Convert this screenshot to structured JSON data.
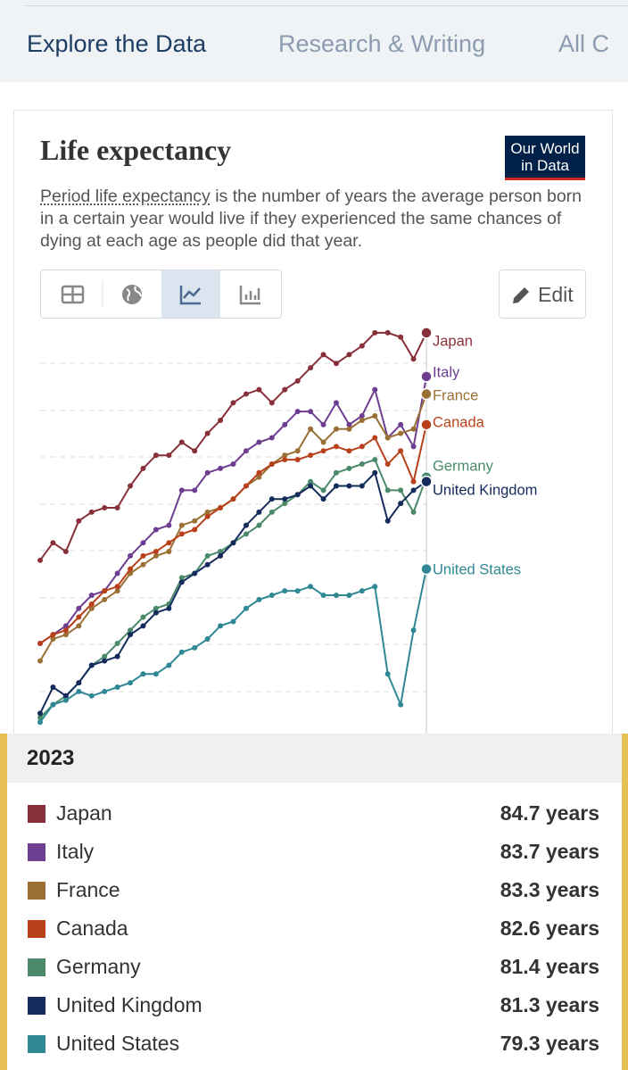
{
  "nav": [
    "Explore the Data",
    "Research & Writing",
    "All C"
  ],
  "logo": [
    "Our World",
    "in Data"
  ],
  "description": {
    "link": "Period life expectancy",
    "text": " is the number of years the average person born in a certain year would live if they experienced the same chances of dying at each age as people did that year."
  },
  "edit_button": "Edit",
  "chart_data": {
    "type": "line",
    "title": "Life expectancy",
    "categories": [
      null,
      null,
      null,
      null,
      null,
      null,
      null,
      null,
      null,
      null,
      null,
      null,
      null,
      null,
      null,
      null,
      null,
      null,
      null,
      null,
      null,
      null,
      null,
      null,
      null,
      null,
      null,
      null,
      null,
      null,
      "2023"
    ],
    "ylim": [
      75.6,
      84.8
    ],
    "series": [
      {
        "name": "Japan",
        "color": "#883039",
        "values": [
          79.5,
          79.9,
          79.7,
          80.4,
          80.6,
          80.7,
          80.7,
          81.2,
          81.6,
          81.9,
          81.9,
          82.2,
          82.0,
          82.4,
          82.7,
          83.1,
          83.3,
          83.4,
          83.1,
          83.4,
          83.6,
          83.9,
          84.2,
          84.0,
          84.2,
          84.4,
          84.7,
          84.7,
          84.6,
          84.1,
          84.7
        ],
        "value_labels": [
          null,
          null,
          null,
          null,
          null,
          null,
          null,
          null,
          null,
          null,
          null,
          null,
          null,
          null,
          null,
          null,
          null,
          null,
          null,
          null,
          null,
          null,
          null,
          null,
          null,
          null,
          null,
          null,
          null,
          null,
          "84.7 years"
        ]
      },
      {
        "name": "Italy",
        "color": "#6d3e91",
        "values": [
          77.6,
          77.8,
          78.0,
          78.4,
          78.7,
          78.8,
          79.2,
          79.6,
          79.9,
          80.2,
          80.3,
          81.1,
          81.1,
          81.5,
          81.6,
          81.7,
          82.0,
          82.2,
          82.3,
          82.6,
          82.9,
          82.9,
          82.6,
          83.1,
          82.6,
          82.8,
          83.4,
          82.3,
          82.6,
          82.1,
          83.7
        ],
        "value_labels": [
          null,
          null,
          null,
          null,
          null,
          null,
          null,
          null,
          null,
          null,
          null,
          null,
          null,
          null,
          null,
          null,
          null,
          null,
          null,
          null,
          null,
          null,
          null,
          null,
          null,
          null,
          null,
          null,
          null,
          null,
          "83.7 years"
        ]
      },
      {
        "name": "France",
        "color": "#9a7035",
        "values": [
          77.2,
          77.7,
          77.8,
          78.0,
          78.4,
          78.6,
          78.8,
          79.2,
          79.4,
          79.6,
          79.7,
          80.3,
          80.4,
          80.6,
          80.7,
          80.9,
          81.2,
          81.4,
          81.7,
          81.9,
          82.0,
          82.5,
          82.2,
          82.5,
          82.5,
          82.7,
          82.8,
          82.3,
          82.4,
          82.5,
          83.3
        ],
        "value_labels": [
          null,
          null,
          null,
          null,
          null,
          null,
          null,
          null,
          null,
          null,
          null,
          null,
          null,
          null,
          null,
          null,
          null,
          null,
          null,
          null,
          null,
          null,
          null,
          null,
          null,
          null,
          null,
          null,
          null,
          null,
          "83.3 years"
        ]
      },
      {
        "name": "Canada",
        "color": "#b8411b",
        "values": [
          77.6,
          77.8,
          77.9,
          78.2,
          78.5,
          78.8,
          78.9,
          79.3,
          79.6,
          79.7,
          79.9,
          80.1,
          80.2,
          80.5,
          80.7,
          80.9,
          81.2,
          81.5,
          81.7,
          81.8,
          81.8,
          81.9,
          82.0,
          82.1,
          82.0,
          82.1,
          82.3,
          81.7,
          82.0,
          81.3,
          82.6
        ],
        "value_labels": [
          null,
          null,
          null,
          null,
          null,
          null,
          null,
          null,
          null,
          null,
          null,
          null,
          null,
          null,
          null,
          null,
          null,
          null,
          null,
          null,
          null,
          null,
          null,
          null,
          null,
          null,
          null,
          null,
          null,
          null,
          "82.6 years"
        ]
      },
      {
        "name": "Germany",
        "color": "#4a8a6b",
        "values": [
          75.9,
          76.2,
          76.4,
          76.7,
          77.1,
          77.3,
          77.6,
          77.9,
          78.2,
          78.4,
          78.5,
          79.1,
          79.2,
          79.6,
          79.7,
          79.9,
          80.1,
          80.3,
          80.6,
          80.8,
          81.0,
          81.3,
          81.1,
          81.5,
          81.6,
          81.7,
          81.8,
          81.1,
          81.1,
          80.6,
          81.4
        ],
        "value_labels": [
          null,
          null,
          null,
          null,
          null,
          null,
          null,
          null,
          null,
          null,
          null,
          null,
          null,
          null,
          null,
          null,
          null,
          null,
          null,
          null,
          null,
          null,
          null,
          null,
          null,
          null,
          null,
          null,
          null,
          null,
          "81.4 years"
        ]
      },
      {
        "name": "United Kingdom",
        "color": "#142b5c",
        "values": [
          76.0,
          76.6,
          76.4,
          76.7,
          77.1,
          77.2,
          77.3,
          77.8,
          78.0,
          78.3,
          78.4,
          79.0,
          79.2,
          79.4,
          79.6,
          79.9,
          80.3,
          80.6,
          80.9,
          80.9,
          81.0,
          81.2,
          80.9,
          81.2,
          81.2,
          81.2,
          81.5,
          80.4,
          80.8,
          81.1,
          81.3
        ],
        "value_labels": [
          null,
          null,
          null,
          null,
          null,
          null,
          null,
          null,
          null,
          null,
          null,
          null,
          null,
          null,
          null,
          null,
          null,
          null,
          null,
          null,
          null,
          null,
          null,
          null,
          null,
          null,
          null,
          null,
          null,
          null,
          "81.3 years"
        ]
      },
      {
        "name": "United States",
        "color": "#2f8894",
        "values": [
          75.8,
          76.2,
          76.3,
          76.5,
          76.4,
          76.5,
          76.6,
          76.7,
          76.9,
          76.9,
          77.1,
          77.4,
          77.5,
          77.7,
          78.0,
          78.1,
          78.4,
          78.6,
          78.7,
          78.8,
          78.8,
          78.9,
          78.7,
          78.7,
          78.7,
          78.8,
          78.9,
          76.9,
          76.2,
          77.9,
          79.3
        ],
        "value_labels": [
          null,
          null,
          null,
          null,
          null,
          null,
          null,
          null,
          null,
          null,
          null,
          null,
          null,
          null,
          null,
          null,
          null,
          null,
          null,
          null,
          null,
          null,
          null,
          null,
          null,
          null,
          null,
          null,
          null,
          null,
          "79.3 years"
        ]
      }
    ]
  }
}
